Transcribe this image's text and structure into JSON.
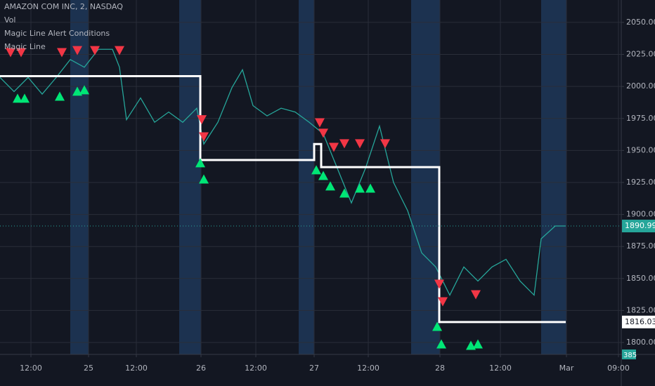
{
  "chart_data": {
    "type": "line",
    "title": "AMAZON COM INC, 2, NASDAQ",
    "legend": [
      "Vol",
      "Magic Line Alert Conditions",
      "Magic Line"
    ],
    "xlim": [
      0,
      442
    ],
    "xticks": [
      {
        "value": 22,
        "label": "12:00"
      },
      {
        "value": 63,
        "label": "25"
      },
      {
        "value": 97,
        "label": "12:00"
      },
      {
        "value": 143,
        "label": "26"
      },
      {
        "value": 182,
        "label": "12:00"
      },
      {
        "value": 223.5,
        "label": "27"
      },
      {
        "value": 262,
        "label": "12:00"
      },
      {
        "value": 313,
        "label": "28"
      },
      {
        "value": 356,
        "label": "12:00"
      },
      {
        "value": 403,
        "label": "Mar"
      },
      {
        "value": 440,
        "label": "09:00"
      }
    ],
    "ylim": [
      1790.7,
      2067.5
    ],
    "yticks": [
      {
        "value": 2050,
        "label": "2050.00"
      },
      {
        "value": 2025,
        "label": "2025.00"
      },
      {
        "value": 2000,
        "label": "2000.00"
      },
      {
        "value": 1975,
        "label": "1975.00"
      },
      {
        "value": 1950,
        "label": "1950.00"
      },
      {
        "value": 1925,
        "label": "1925.00"
      },
      {
        "value": 1900,
        "label": "1900.00"
      },
      {
        "value": 1875,
        "label": "1875.00"
      },
      {
        "value": 1850,
        "label": "1850.00"
      },
      {
        "value": 1825,
        "label": "1825.00"
      },
      {
        "value": 1800,
        "label": "1800.00"
      }
    ],
    "grid": true,
    "series": [
      {
        "name": "AMZN",
        "color": "#26a69a",
        "style": "line",
        "x": [
          0,
          10,
          20,
          30,
          40,
          50,
          60,
          70,
          80,
          85,
          90,
          100,
          110,
          120,
          130,
          140,
          145,
          155,
          165,
          172.5,
          180,
          190,
          200,
          210,
          220,
          230,
          240,
          250,
          260,
          270,
          280,
          290,
          300,
          310,
          320,
          330,
          340,
          350,
          360,
          370,
          380,
          385,
          395,
          402.5
        ],
        "values": [
          2007,
          1996,
          2007,
          1994,
          2007,
          2021,
          2015,
          2029,
          2029,
          2015,
          1974,
          1991,
          1972,
          1980,
          1972,
          1983,
          1955,
          1972,
          1999,
          2013,
          1985,
          1977,
          1983,
          1980,
          1972,
          1963,
          1936,
          1909,
          1936,
          1969,
          1925,
          1903,
          1870,
          1859,
          1837,
          1859,
          1848,
          1859,
          1865,
          1848,
          1837,
          1881,
          1891,
          1891
        ]
      },
      {
        "name": "Magic Line",
        "color": "#ffffff",
        "style": "line",
        "x": [
          0,
          142.5,
          142.5,
          223.5,
          223.5,
          228.5,
          228.5,
          312.5,
          312.5,
          402.5
        ],
        "values": [
          2008,
          2008,
          1942.5,
          1942.5,
          1955,
          1955,
          1937,
          1937,
          1816,
          1816
        ]
      },
      {
        "name": "Sell",
        "color": "#f23645",
        "style": "triangle-down",
        "x": [
          7.5,
          15,
          44,
          55,
          67.5,
          85,
          143.5,
          145,
          227.5,
          230,
          237.5,
          245,
          256,
          274,
          312.5,
          315,
          338.5
        ],
        "values": [
          2026.4,
          2026.4,
          2026.4,
          2028,
          2028,
          2028,
          1974,
          1960.6,
          1971.6,
          1963.4,
          1952.4,
          1955.2,
          1955.2,
          1955.2,
          1845.5,
          1831.8,
          1837.3
        ]
      },
      {
        "name": "Buy",
        "color": "#00e676",
        "style": "triangle-up",
        "x": [
          12.5,
          17.5,
          42.5,
          55,
          60,
          142.5,
          145,
          225,
          230,
          235,
          245,
          256,
          263.5,
          311,
          314,
          335,
          340
        ],
        "values": [
          1990.8,
          1990.8,
          1992.4,
          1996.3,
          1997.4,
          1940.4,
          1927.7,
          1934.9,
          1930.5,
          1922.3,
          1916.8,
          1920.6,
          1920.6,
          1812.6,
          1798.9,
          1797.8,
          1798.9
        ]
      }
    ],
    "last_price": {
      "value": 1890.99,
      "label": "1890.99"
    },
    "magic_line_last": {
      "value": 1816.03,
      "label": "1816.03"
    },
    "volume_label": "385"
  }
}
